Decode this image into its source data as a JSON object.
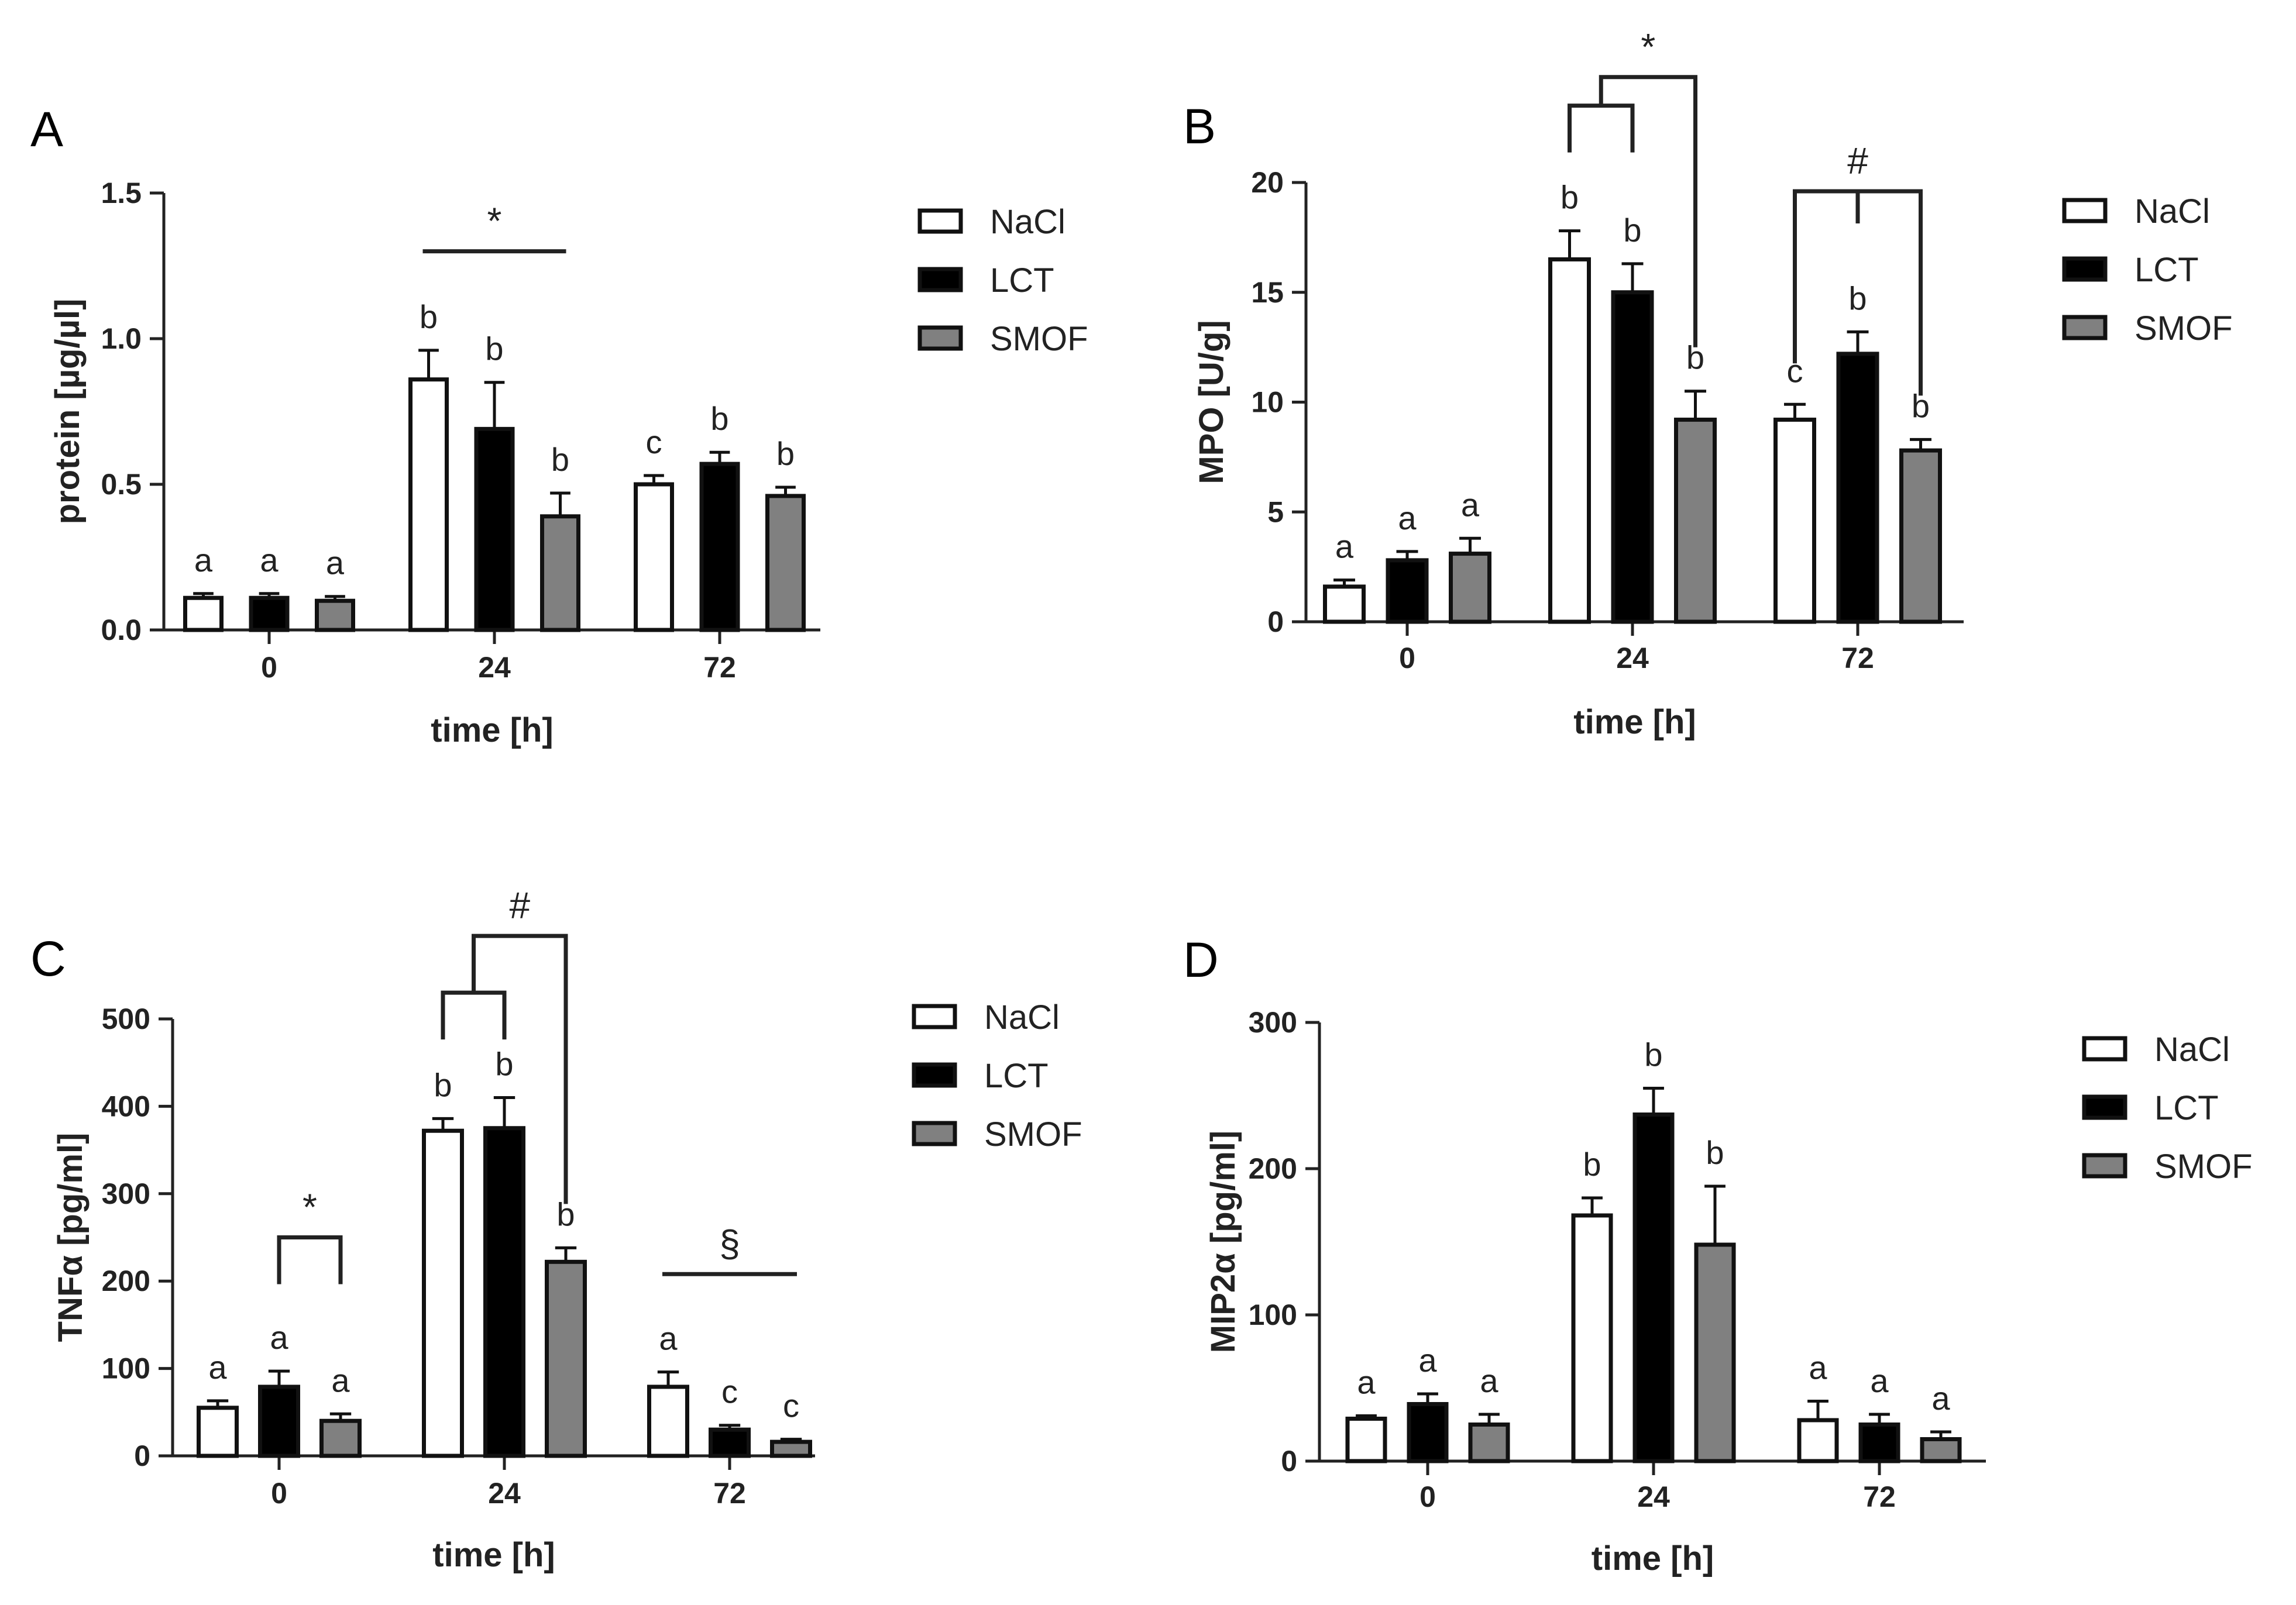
{
  "colors": {
    "NaCl": "#ffffff",
    "LCT": "#000000",
    "SMOF": "#808080",
    "stroke": "#111111"
  },
  "chart_data": [
    {
      "panel": "A",
      "type": "bar",
      "xlabel": "time [h]",
      "ylabel": "protein [µg/µl]",
      "categories": [
        "0",
        "24",
        "72"
      ],
      "ylim": [
        0,
        1.5
      ],
      "yticks": [
        "0.0",
        "0.5",
        "1.0",
        "1.5"
      ],
      "legend": [
        "NaCl",
        "LCT",
        "SMOF"
      ],
      "series": [
        {
          "name": "NaCl",
          "values": [
            0.11,
            0.86,
            0.5
          ],
          "errors": [
            0.015,
            0.1,
            0.03
          ],
          "labels": [
            "a",
            "b",
            "c"
          ]
        },
        {
          "name": "LCT",
          "values": [
            0.11,
            0.69,
            0.57
          ],
          "errors": [
            0.015,
            0.16,
            0.04
          ],
          "labels": [
            "a",
            "b",
            "b"
          ]
        },
        {
          "name": "SMOF",
          "values": [
            0.1,
            0.39,
            0.46
          ],
          "errors": [
            0.015,
            0.08,
            0.03
          ],
          "labels": [
            "a",
            "b",
            "b"
          ]
        }
      ],
      "annotations": [
        {
          "symbol": "*",
          "kind": "line",
          "group": 1,
          "level": 1.3
        }
      ]
    },
    {
      "panel": "B",
      "type": "bar",
      "xlabel": "time [h]",
      "ylabel": "MPO [U/g]",
      "categories": [
        "0",
        "24",
        "72"
      ],
      "ylim": [
        0,
        20
      ],
      "yticks": [
        "0",
        "5",
        "10",
        "15",
        "20"
      ],
      "legend": [
        "NaCl",
        "LCT",
        "SMOF"
      ],
      "series": [
        {
          "name": "NaCl",
          "values": [
            1.6,
            16.5,
            9.2
          ],
          "errors": [
            0.3,
            1.3,
            0.7
          ],
          "labels": [
            "a",
            "b",
            "c"
          ]
        },
        {
          "name": "LCT",
          "values": [
            2.8,
            15.0,
            12.2
          ],
          "errors": [
            0.4,
            1.3,
            1.0
          ],
          "labels": [
            "a",
            "b",
            "b"
          ]
        },
        {
          "name": "SMOF",
          "values": [
            3.1,
            9.2,
            7.8
          ],
          "errors": [
            0.7,
            1.3,
            0.5
          ],
          "labels": [
            "a",
            "b",
            "b"
          ]
        }
      ],
      "annotations": [
        {
          "symbol": "*",
          "kind": "nested",
          "group": 1,
          "inner": 23.5,
          "outer": 24.8
        },
        {
          "symbol": "#",
          "kind": "wide",
          "group": 2,
          "level": 19.6
        }
      ]
    },
    {
      "panel": "C",
      "type": "bar",
      "xlabel": "time [h]",
      "ylabel": "TNFα [pg/ml]",
      "categories": [
        "0",
        "24",
        "72"
      ],
      "ylim": [
        0,
        500
      ],
      "yticks": [
        "0",
        "100",
        "200",
        "300",
        "400",
        "500"
      ],
      "legend": [
        "NaCl",
        "LCT",
        "SMOF"
      ],
      "series": [
        {
          "name": "NaCl",
          "values": [
            55,
            372,
            79
          ],
          "errors": [
            8,
            14,
            17
          ],
          "labels": [
            "a",
            "b",
            "a"
          ]
        },
        {
          "name": "LCT",
          "values": [
            79,
            375,
            30
          ],
          "errors": [
            18,
            35,
            5
          ],
          "labels": [
            "a",
            "b",
            "c"
          ]
        },
        {
          "name": "SMOF",
          "values": [
            40,
            222,
            16
          ],
          "errors": [
            8,
            16,
            3
          ],
          "labels": [
            "a",
            "b",
            "c"
          ]
        }
      ],
      "annotations": [
        {
          "symbol": "*",
          "kind": "bracket",
          "group": 0,
          "level": 250
        },
        {
          "symbol": "#",
          "kind": "nested",
          "group": 1,
          "inner": 530,
          "outer": 595
        },
        {
          "symbol": "§",
          "kind": "line",
          "group": 2,
          "level": 208
        }
      ]
    },
    {
      "panel": "D",
      "type": "bar",
      "xlabel": "time [h]",
      "ylabel": "MIP2α [pg/ml]",
      "categories": [
        "0",
        "24",
        "72"
      ],
      "ylim": [
        0,
        300
      ],
      "yticks": [
        "0",
        "100",
        "200",
        "300"
      ],
      "legend": [
        "NaCl",
        "LCT",
        "SMOF"
      ],
      "series": [
        {
          "name": "NaCl",
          "values": [
            29,
            168,
            28
          ],
          "errors": [
            2,
            12,
            13
          ],
          "labels": [
            "a",
            "b",
            "a"
          ]
        },
        {
          "name": "LCT",
          "values": [
            39,
            237,
            25
          ],
          "errors": [
            7,
            18,
            7
          ],
          "labels": [
            "a",
            "b",
            "a"
          ]
        },
        {
          "name": "SMOF",
          "values": [
            25,
            148,
            15
          ],
          "errors": [
            7,
            40,
            5
          ],
          "labels": [
            "a",
            "b",
            "a"
          ]
        }
      ],
      "annotations": []
    }
  ]
}
